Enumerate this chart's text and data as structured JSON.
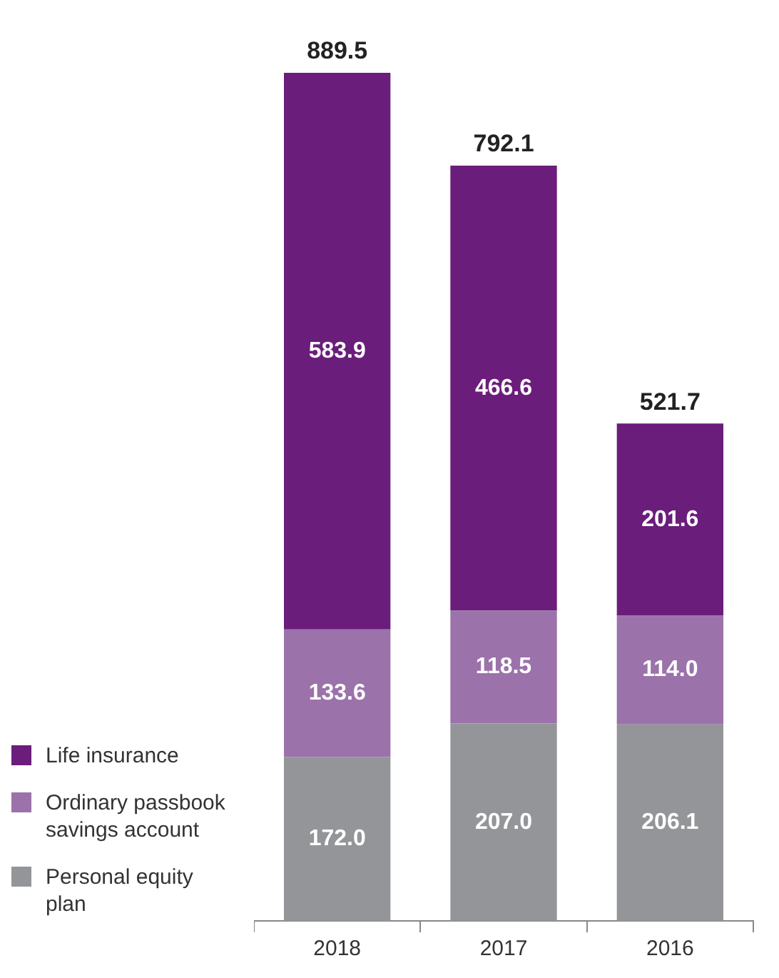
{
  "chart_data": {
    "type": "bar",
    "stacked": true,
    "categories": [
      "2018",
      "2017",
      "2016"
    ],
    "series": [
      {
        "name": "Personal equity plan",
        "color": "#939598",
        "values": [
          172.0,
          207.0,
          206.1
        ],
        "value_labels": [
          "172.0",
          "207.0",
          "206.1"
        ]
      },
      {
        "name": "Ordinary passbook savings account",
        "color": "#9b72aa",
        "values": [
          133.6,
          118.5,
          114.0
        ],
        "value_labels": [
          "133.6",
          "118.5",
          "114.0"
        ]
      },
      {
        "name": "Life insurance",
        "color": "#6b1d7b",
        "values": [
          583.9,
          466.6,
          201.6
        ],
        "value_labels": [
          "583.9",
          "466.6",
          "201.6"
        ]
      }
    ],
    "totals": [
      "889.5",
      "792.1",
      "521.7"
    ],
    "grid": false,
    "legend": "left"
  }
}
